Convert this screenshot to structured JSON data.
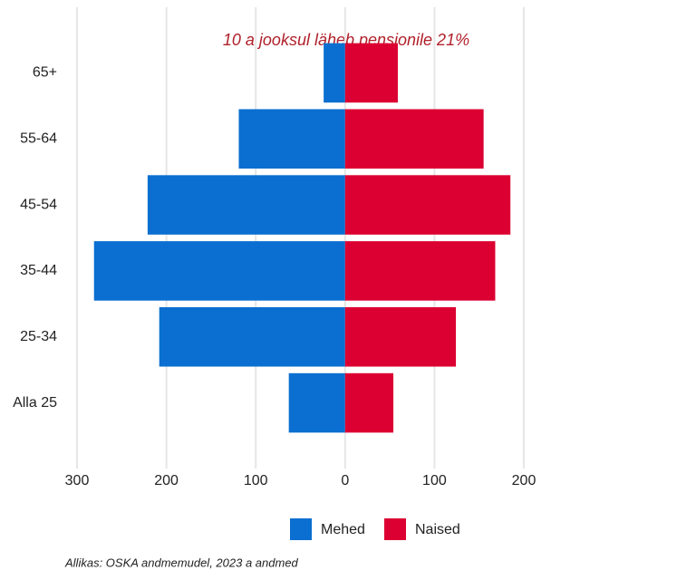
{
  "chart_data": {
    "type": "bar",
    "annotation": "10 a jooksul läheb pensionile 21%",
    "source": "Allikas: OSKA andmemudel, 2023 a andmed",
    "categories": [
      "65+",
      "55-64",
      "45-54",
      "35-44",
      "25-34",
      "Alla 25"
    ],
    "series": [
      {
        "name": "Mehed",
        "color": "#0a6fd0",
        "values": [
          -24,
          -119,
          -221,
          -281,
          -208,
          -63
        ]
      },
      {
        "name": "Naised",
        "color": "#dc0032",
        "values": [
          59,
          155,
          185,
          168,
          124,
          54
        ]
      }
    ],
    "xlim": [
      -300,
      200
    ],
    "xticks": [
      {
        "value": -300,
        "label": "300"
      },
      {
        "value": -200,
        "label": "200"
      },
      {
        "value": -100,
        "label": "100"
      },
      0,
      100,
      200
    ],
    "grid": true
  }
}
